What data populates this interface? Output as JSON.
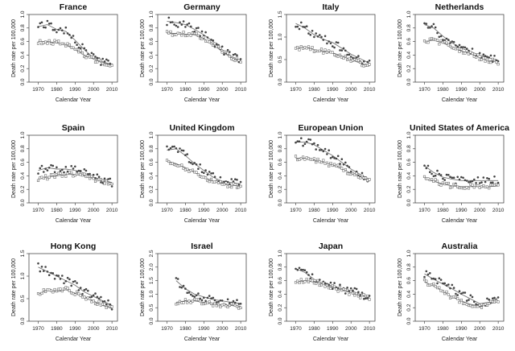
{
  "chart_data": [
    {
      "type": "scatter",
      "title": "France",
      "xlabel": "Calendar Year",
      "ylabel": "Death rate per 100,000",
      "xlim": [
        1965,
        2013
      ],
      "ylim": [
        0,
        1.0
      ],
      "xticks": [
        1970,
        1980,
        1990,
        2000,
        2010
      ],
      "yticks": [
        0,
        0.2,
        0.4,
        0.6,
        0.8,
        1.0
      ],
      "x": [
        1970,
        1975,
        1980,
        1985,
        1990,
        1995,
        2000,
        2005,
        2010
      ],
      "series": [
        {
          "values": [
            0.82,
            0.85,
            0.78,
            0.75,
            0.62,
            0.48,
            0.36,
            0.3,
            0.26
          ]
        },
        {
          "values": [
            0.6,
            0.6,
            0.58,
            0.55,
            0.48,
            0.4,
            0.34,
            0.28,
            0.26
          ]
        }
      ]
    },
    {
      "type": "scatter",
      "title": "Germany",
      "xlabel": "Calendar Year",
      "ylabel": "Death rate per 100,000",
      "xlim": [
        1965,
        2013
      ],
      "ylim": [
        0,
        1.0
      ],
      "xticks": [
        1970,
        1980,
        1990,
        2000,
        2010
      ],
      "yticks": [
        0,
        0.2,
        0.4,
        0.6,
        0.8,
        1.0
      ],
      "x": [
        1970,
        1975,
        1980,
        1985,
        1990,
        1995,
        2000,
        2005,
        2010
      ],
      "series": [
        {
          "values": [
            0.9,
            0.88,
            0.85,
            0.78,
            0.7,
            0.6,
            0.48,
            0.38,
            0.32
          ]
        },
        {
          "values": [
            0.72,
            0.72,
            0.71,
            0.7,
            0.64,
            0.56,
            0.45,
            0.36,
            0.3
          ]
        }
      ]
    },
    {
      "type": "scatter",
      "title": "Italy",
      "xlabel": "Calendar Year",
      "ylabel": "Death rate per 100,000",
      "xlim": [
        1965,
        2013
      ],
      "ylim": [
        0,
        1.5
      ],
      "xticks": [
        1970,
        1980,
        1990,
        2000,
        2010
      ],
      "yticks": [
        0,
        0.5,
        1.0,
        1.5
      ],
      "x": [
        1970,
        1975,
        1980,
        1985,
        1990,
        1995,
        2000,
        2005,
        2010
      ],
      "series": [
        {
          "values": [
            1.3,
            1.2,
            1.05,
            0.95,
            0.88,
            0.75,
            0.62,
            0.52,
            0.42
          ]
        },
        {
          "values": [
            0.75,
            0.78,
            0.72,
            0.68,
            0.65,
            0.58,
            0.5,
            0.42,
            0.36
          ]
        }
      ]
    },
    {
      "type": "scatter",
      "title": "Netherlands",
      "xlabel": "Calendar Year",
      "ylabel": "Death rate per 100,000",
      "xlim": [
        1965,
        2013
      ],
      "ylim": [
        0,
        1.0
      ],
      "xticks": [
        1970,
        1980,
        1990,
        2000,
        2010
      ],
      "yticks": [
        0,
        0.2,
        0.4,
        0.6,
        0.8,
        1.0
      ],
      "x": [
        1970,
        1975,
        1980,
        1985,
        1990,
        1995,
        2000,
        2005,
        2010
      ],
      "series": [
        {
          "values": [
            0.85,
            0.8,
            0.68,
            0.58,
            0.5,
            0.45,
            0.4,
            0.36,
            0.32
          ]
        },
        {
          "values": [
            0.6,
            0.62,
            0.58,
            0.52,
            0.46,
            0.42,
            0.36,
            0.32,
            0.3
          ]
        }
      ]
    },
    {
      "type": "scatter",
      "title": "Spain",
      "xlabel": "Calendar Year",
      "ylabel": "Death rate per 100,000",
      "xlim": [
        1965,
        2013
      ],
      "ylim": [
        0,
        1.0
      ],
      "xticks": [
        1970,
        1980,
        1990,
        2000,
        2010
      ],
      "yticks": [
        0,
        0.2,
        0.4,
        0.6,
        0.8,
        1.0
      ],
      "x": [
        1970,
        1975,
        1980,
        1985,
        1990,
        1995,
        2000,
        2005,
        2010
      ],
      "series": [
        {
          "values": [
            0.48,
            0.52,
            0.5,
            0.5,
            0.48,
            0.44,
            0.38,
            0.34,
            0.3
          ]
        },
        {
          "values": [
            0.36,
            0.38,
            0.4,
            0.42,
            0.42,
            0.4,
            0.36,
            0.32,
            0.3
          ]
        }
      ]
    },
    {
      "type": "scatter",
      "title": "United Kingdom",
      "xlabel": "Calendar Year",
      "ylabel": "Death rate per 100,000",
      "xlim": [
        1965,
        2013
      ],
      "ylim": [
        0,
        1.0
      ],
      "xticks": [
        1970,
        1980,
        1990,
        2000,
        2010
      ],
      "yticks": [
        0,
        0.2,
        0.4,
        0.6,
        0.8,
        1.0
      ],
      "x": [
        1970,
        1975,
        1980,
        1985,
        1990,
        1995,
        2000,
        2005,
        2010
      ],
      "series": [
        {
          "values": [
            0.78,
            0.8,
            0.7,
            0.58,
            0.48,
            0.38,
            0.32,
            0.3,
            0.28
          ]
        },
        {
          "values": [
            0.62,
            0.58,
            0.52,
            0.45,
            0.38,
            0.32,
            0.28,
            0.26,
            0.25
          ]
        }
      ]
    },
    {
      "type": "scatter",
      "title": "European Union",
      "xlabel": "Calendar Year",
      "ylabel": "Death rate per 100,000",
      "xlim": [
        1965,
        2013
      ],
      "ylim": [
        0,
        1.0
      ],
      "xticks": [
        1970,
        1980,
        1990,
        2000,
        2010
      ],
      "yticks": [
        0,
        0.2,
        0.4,
        0.6,
        0.8,
        1.0
      ],
      "x": [
        1970,
        1975,
        1980,
        1985,
        1990,
        1995,
        2000,
        2005,
        2010
      ],
      "series": [
        {
          "values": [
            0.9,
            0.9,
            0.86,
            0.78,
            0.7,
            0.6,
            0.5,
            0.42,
            0.35
          ]
        },
        {
          "values": [
            0.66,
            0.66,
            0.63,
            0.6,
            0.56,
            0.5,
            0.44,
            0.38,
            0.32
          ]
        }
      ]
    },
    {
      "type": "scatter",
      "title": "United States of America",
      "xlabel": "Calendar Year",
      "ylabel": "Death rate per 100,000",
      "xlim": [
        1965,
        2013
      ],
      "ylim": [
        0,
        1.0
      ],
      "xticks": [
        1970,
        1980,
        1990,
        2000,
        2010
      ],
      "yticks": [
        0,
        0.2,
        0.4,
        0.6,
        0.8,
        1.0
      ],
      "x": [
        1970,
        1975,
        1980,
        1985,
        1990,
        1995,
        2000,
        2005,
        2010
      ],
      "series": [
        {
          "values": [
            0.55,
            0.45,
            0.38,
            0.35,
            0.33,
            0.33,
            0.33,
            0.33,
            0.33
          ]
        },
        {
          "values": [
            0.36,
            0.32,
            0.28,
            0.25,
            0.24,
            0.24,
            0.24,
            0.24,
            0.25
          ]
        }
      ]
    },
    {
      "type": "scatter",
      "title": "Hong Kong",
      "xlabel": "Calendar Year",
      "ylabel": "Death rate per 100,000",
      "xlim": [
        1965,
        2013
      ],
      "ylim": [
        0,
        1.5
      ],
      "xticks": [
        1970,
        1980,
        1990,
        2000,
        2010
      ],
      "yticks": [
        0,
        0.5,
        1.0,
        1.5
      ],
      "x": [
        1970,
        1975,
        1980,
        1985,
        1990,
        1995,
        2000,
        2005,
        2010
      ],
      "series": [
        {
          "values": [
            1.2,
            1.1,
            1.0,
            0.9,
            0.8,
            0.65,
            0.55,
            0.45,
            0.35
          ]
        },
        {
          "values": [
            0.6,
            0.7,
            0.65,
            0.7,
            0.62,
            0.55,
            0.45,
            0.35,
            0.28
          ]
        }
      ]
    },
    {
      "type": "scatter",
      "title": "Israel",
      "xlabel": "Calendar Year",
      "ylabel": "Death rate per 100,000",
      "xlim": [
        1965,
        2013
      ],
      "ylim": [
        0,
        2.5
      ],
      "xticks": [
        1970,
        1980,
        1990,
        2000,
        2010
      ],
      "yticks": [
        0,
        0.5,
        1.0,
        1.5,
        2.0,
        2.5
      ],
      "x": [
        1975,
        1980,
        1985,
        1990,
        1995,
        2000,
        2005,
        2010
      ],
      "series": [
        {
          "values": [
            1.5,
            1.2,
            1.0,
            0.9,
            0.8,
            0.75,
            0.7,
            0.65
          ]
        },
        {
          "values": [
            0.7,
            0.75,
            0.75,
            0.7,
            0.65,
            0.6,
            0.58,
            0.55
          ]
        }
      ]
    },
    {
      "type": "scatter",
      "title": "Japan",
      "xlabel": "Calendar Year",
      "ylabel": "Death rate per 100,000",
      "xlim": [
        1965,
        2013
      ],
      "ylim": [
        0,
        1.0
      ],
      "xticks": [
        1970,
        1980,
        1990,
        2000,
        2010
      ],
      "yticks": [
        0,
        0.2,
        0.4,
        0.6,
        0.8,
        1.0
      ],
      "x": [
        1970,
        1975,
        1980,
        1985,
        1990,
        1995,
        2000,
        2005,
        2010
      ],
      "series": [
        {
          "values": [
            0.78,
            0.72,
            0.62,
            0.56,
            0.52,
            0.48,
            0.45,
            0.4,
            0.36
          ]
        },
        {
          "values": [
            0.58,
            0.6,
            0.58,
            0.55,
            0.5,
            0.46,
            0.42,
            0.38,
            0.35
          ]
        }
      ]
    },
    {
      "type": "scatter",
      "title": "Australia",
      "xlabel": "Calendar Year",
      "ylabel": "Death rate per 100,000",
      "xlim": [
        1965,
        2013
      ],
      "ylim": [
        0,
        1.0
      ],
      "xticks": [
        1970,
        1980,
        1990,
        2000,
        2010
      ],
      "yticks": [
        0,
        0.2,
        0.4,
        0.6,
        0.8,
        1.0
      ],
      "x": [
        1970,
        1975,
        1980,
        1985,
        1990,
        1995,
        2000,
        2005,
        2010
      ],
      "series": [
        {
          "values": [
            0.7,
            0.62,
            0.55,
            0.48,
            0.4,
            0.33,
            0.26,
            0.28,
            0.35
          ]
        },
        {
          "values": [
            0.58,
            0.52,
            0.44,
            0.36,
            0.3,
            0.25,
            0.22,
            0.25,
            0.3
          ]
        }
      ]
    }
  ]
}
